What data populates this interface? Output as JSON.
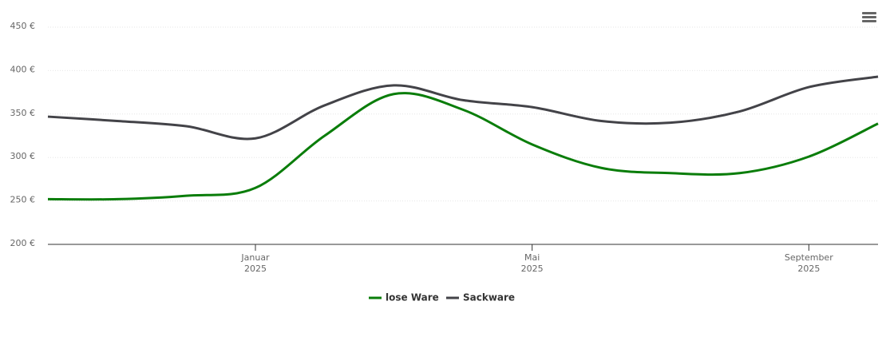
{
  "chart_data": {
    "type": "line",
    "x": [
      "2024-10",
      "2024-11",
      "2024-12",
      "2025-01",
      "2025-02",
      "2025-03",
      "2025-04",
      "2025-05",
      "2025-06",
      "2025-07",
      "2025-08",
      "2025-09",
      "2025-10"
    ],
    "series": [
      {
        "name": "lose Ware",
        "color": "#0a7d0a",
        "values": [
          252,
          252,
          256,
          265,
          325,
          373,
          355,
          315,
          288,
          282,
          282,
          301,
          339
        ]
      },
      {
        "name": "Sackware",
        "color": "#434348",
        "values": [
          347,
          342,
          336,
          322,
          360,
          383,
          366,
          358,
          342,
          340,
          353,
          381,
          393
        ]
      }
    ],
    "xlim": [
      "2024-10",
      "2025-10"
    ],
    "xticks": [
      {
        "value": "2025-01",
        "label": "Januar",
        "year": "2025"
      },
      {
        "value": "2025-05",
        "label": "Mai",
        "year": "2025"
      },
      {
        "value": "2025-09",
        "label": "September",
        "year": "2025"
      }
    ],
    "ylim": [
      200,
      450
    ],
    "yticks": [
      {
        "value": 200,
        "label": "200 €"
      },
      {
        "value": 250,
        "label": "250 €"
      },
      {
        "value": 300,
        "label": "300 €"
      },
      {
        "value": 350,
        "label": "350 €"
      },
      {
        "value": 400,
        "label": "400 €"
      },
      {
        "value": 450,
        "label": "450 €"
      }
    ],
    "grid": true,
    "legend": "bottom"
  }
}
